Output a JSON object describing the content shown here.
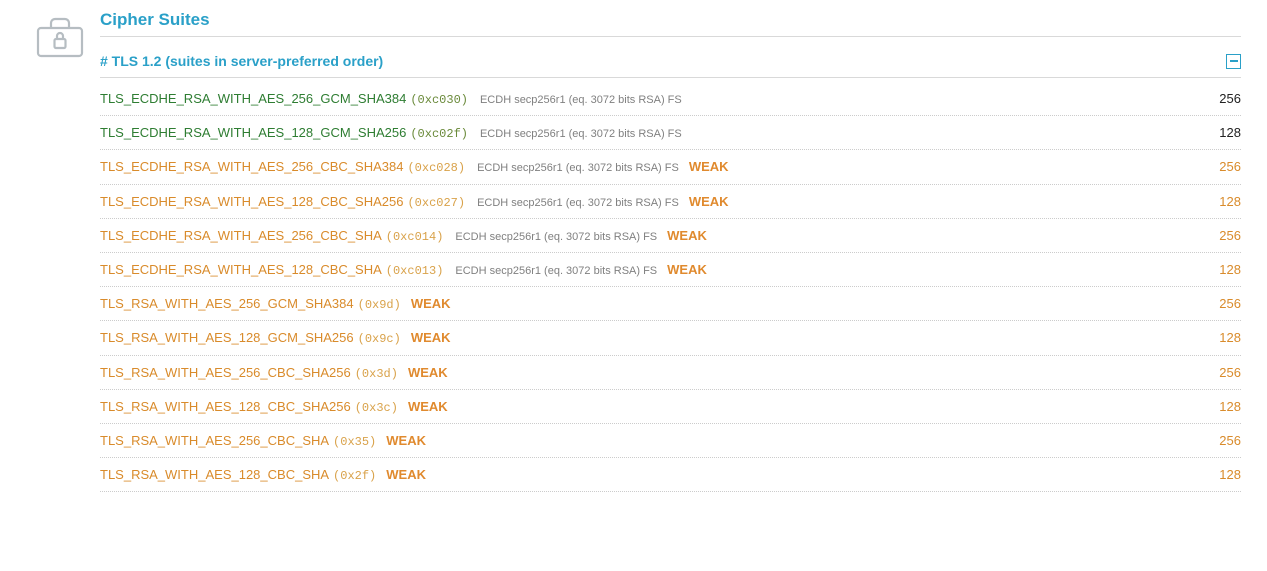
{
  "section_title": "Cipher Suites",
  "tls_header": "# TLS 1.2 (suites in server-preferred order)",
  "colors": {
    "accent": "#2aa0c8",
    "strong_text": "#2e7d32",
    "weak_text": "#d98b2b",
    "weak_tag": "#e08a2e",
    "details_text": "#808080",
    "strong_hex": "#6a8a3a",
    "weak_hex": "#d9a24a",
    "border": "#d9d9d9",
    "row_border": "#cccccc"
  },
  "weak_label": "WEAK",
  "suites": [
    {
      "name": "TLS_ECDHE_RSA_WITH_AES_256_GCM_SHA384",
      "hex": "(0xc030)",
      "details": "ECDH secp256r1 (eq. 3072 bits RSA)   FS",
      "weak": false,
      "bits": "256"
    },
    {
      "name": "TLS_ECDHE_RSA_WITH_AES_128_GCM_SHA256",
      "hex": "(0xc02f)",
      "details": "ECDH secp256r1 (eq. 3072 bits RSA)   FS",
      "weak": false,
      "bits": "128"
    },
    {
      "name": "TLS_ECDHE_RSA_WITH_AES_256_CBC_SHA384",
      "hex": "(0xc028)",
      "details": "ECDH secp256r1 (eq. 3072 bits RSA)   FS",
      "weak": true,
      "bits": "256"
    },
    {
      "name": "TLS_ECDHE_RSA_WITH_AES_128_CBC_SHA256",
      "hex": "(0xc027)",
      "details": "ECDH secp256r1 (eq. 3072 bits RSA)   FS",
      "weak": true,
      "bits": "128"
    },
    {
      "name": "TLS_ECDHE_RSA_WITH_AES_256_CBC_SHA",
      "hex": "(0xc014)",
      "details": "ECDH secp256r1 (eq. 3072 bits RSA)   FS",
      "weak": true,
      "bits": "256"
    },
    {
      "name": "TLS_ECDHE_RSA_WITH_AES_128_CBC_SHA",
      "hex": "(0xc013)",
      "details": "ECDH secp256r1 (eq. 3072 bits RSA)   FS",
      "weak": true,
      "bits": "128"
    },
    {
      "name": "TLS_RSA_WITH_AES_256_GCM_SHA384",
      "hex": "(0x9d)",
      "details": "",
      "weak": true,
      "bits": "256"
    },
    {
      "name": "TLS_RSA_WITH_AES_128_GCM_SHA256",
      "hex": "(0x9c)",
      "details": "",
      "weak": true,
      "bits": "128"
    },
    {
      "name": "TLS_RSA_WITH_AES_256_CBC_SHA256",
      "hex": "(0x3d)",
      "details": "",
      "weak": true,
      "bits": "256"
    },
    {
      "name": "TLS_RSA_WITH_AES_128_CBC_SHA256",
      "hex": "(0x3c)",
      "details": "",
      "weak": true,
      "bits": "128"
    },
    {
      "name": "TLS_RSA_WITH_AES_256_CBC_SHA",
      "hex": "(0x35)",
      "details": "",
      "weak": true,
      "bits": "256"
    },
    {
      "name": "TLS_RSA_WITH_AES_128_CBC_SHA",
      "hex": "(0x2f)",
      "details": "",
      "weak": true,
      "bits": "128"
    }
  ]
}
